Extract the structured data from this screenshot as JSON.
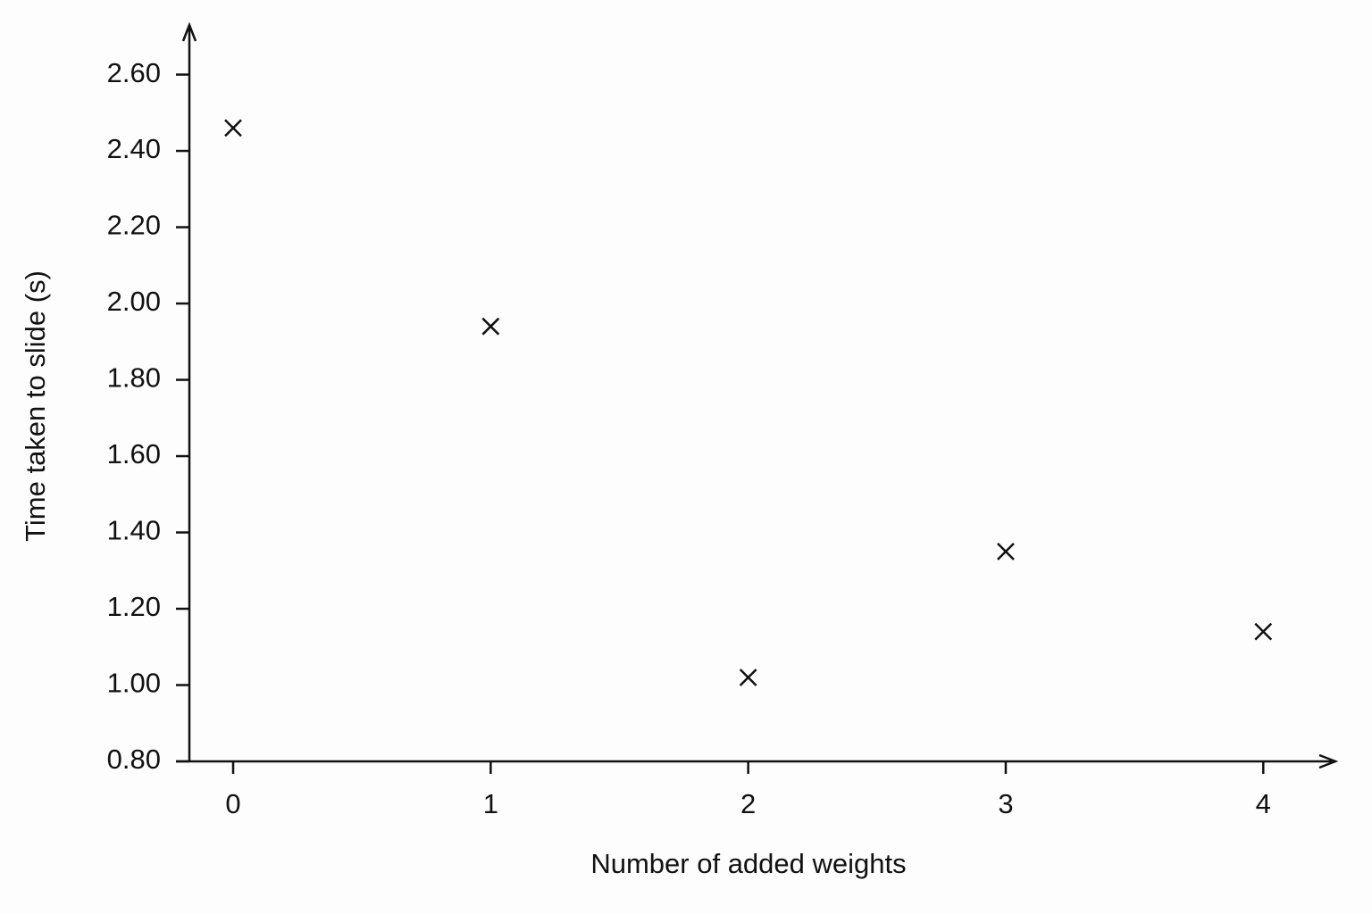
{
  "chart_data": {
    "type": "scatter",
    "xlabel": "Number of added weights",
    "ylabel": "Time taken to slide (s)",
    "x": [
      0,
      1,
      2,
      3,
      4
    ],
    "values": [
      2.46,
      1.94,
      1.02,
      1.35,
      1.14
    ],
    "color": "#111111",
    "marker": "x",
    "xlim": [
      -0.17,
      4.28
    ],
    "ylim": [
      0.8,
      2.73
    ],
    "xticks": [
      0,
      1,
      2,
      3,
      4
    ],
    "yticks": [
      {
        "value": 0.8,
        "label": "0.80"
      },
      {
        "value": 1.0,
        "label": "1.00"
      },
      {
        "value": 1.2,
        "label": "1.20"
      },
      {
        "value": 1.4,
        "label": "1.40"
      },
      {
        "value": 1.6,
        "label": "1.60"
      },
      {
        "value": 1.8,
        "label": "1.80"
      },
      {
        "value": 2.0,
        "label": "2.00"
      },
      {
        "value": 2.2,
        "label": "2.20"
      },
      {
        "value": 2.4,
        "label": "2.40"
      },
      {
        "value": 2.6,
        "label": "2.60"
      }
    ],
    "grid": false
  }
}
